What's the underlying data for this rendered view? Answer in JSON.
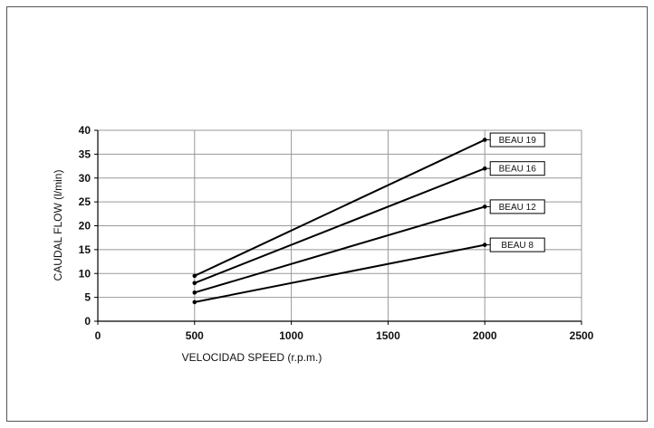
{
  "chart_data": {
    "type": "line",
    "xlabel": "VELOCIDAD SPEED (r.p.m.)",
    "ylabel": "CAUDAL FLOW (l/min)",
    "xlim": [
      0,
      2500
    ],
    "ylim": [
      0,
      40
    ],
    "x_ticks": [
      "0",
      "500",
      "1000",
      "1500",
      "2000",
      "2500"
    ],
    "y_ticks": [
      "0",
      "5",
      "10",
      "15",
      "20",
      "25",
      "30",
      "35",
      "40"
    ],
    "x": [
      500,
      2000
    ],
    "grid": true,
    "legend": "inline labels at right end of each line",
    "series": [
      {
        "name": "BEAU 19",
        "values": [
          9.5,
          38
        ]
      },
      {
        "name": "BEAU 16",
        "values": [
          8,
          32
        ]
      },
      {
        "name": "BEAU 12",
        "values": [
          6,
          24
        ]
      },
      {
        "name": "BEAU 8",
        "values": [
          4,
          16
        ]
      }
    ],
    "colors": {
      "grid": "#999999",
      "line": "#000000"
    }
  }
}
